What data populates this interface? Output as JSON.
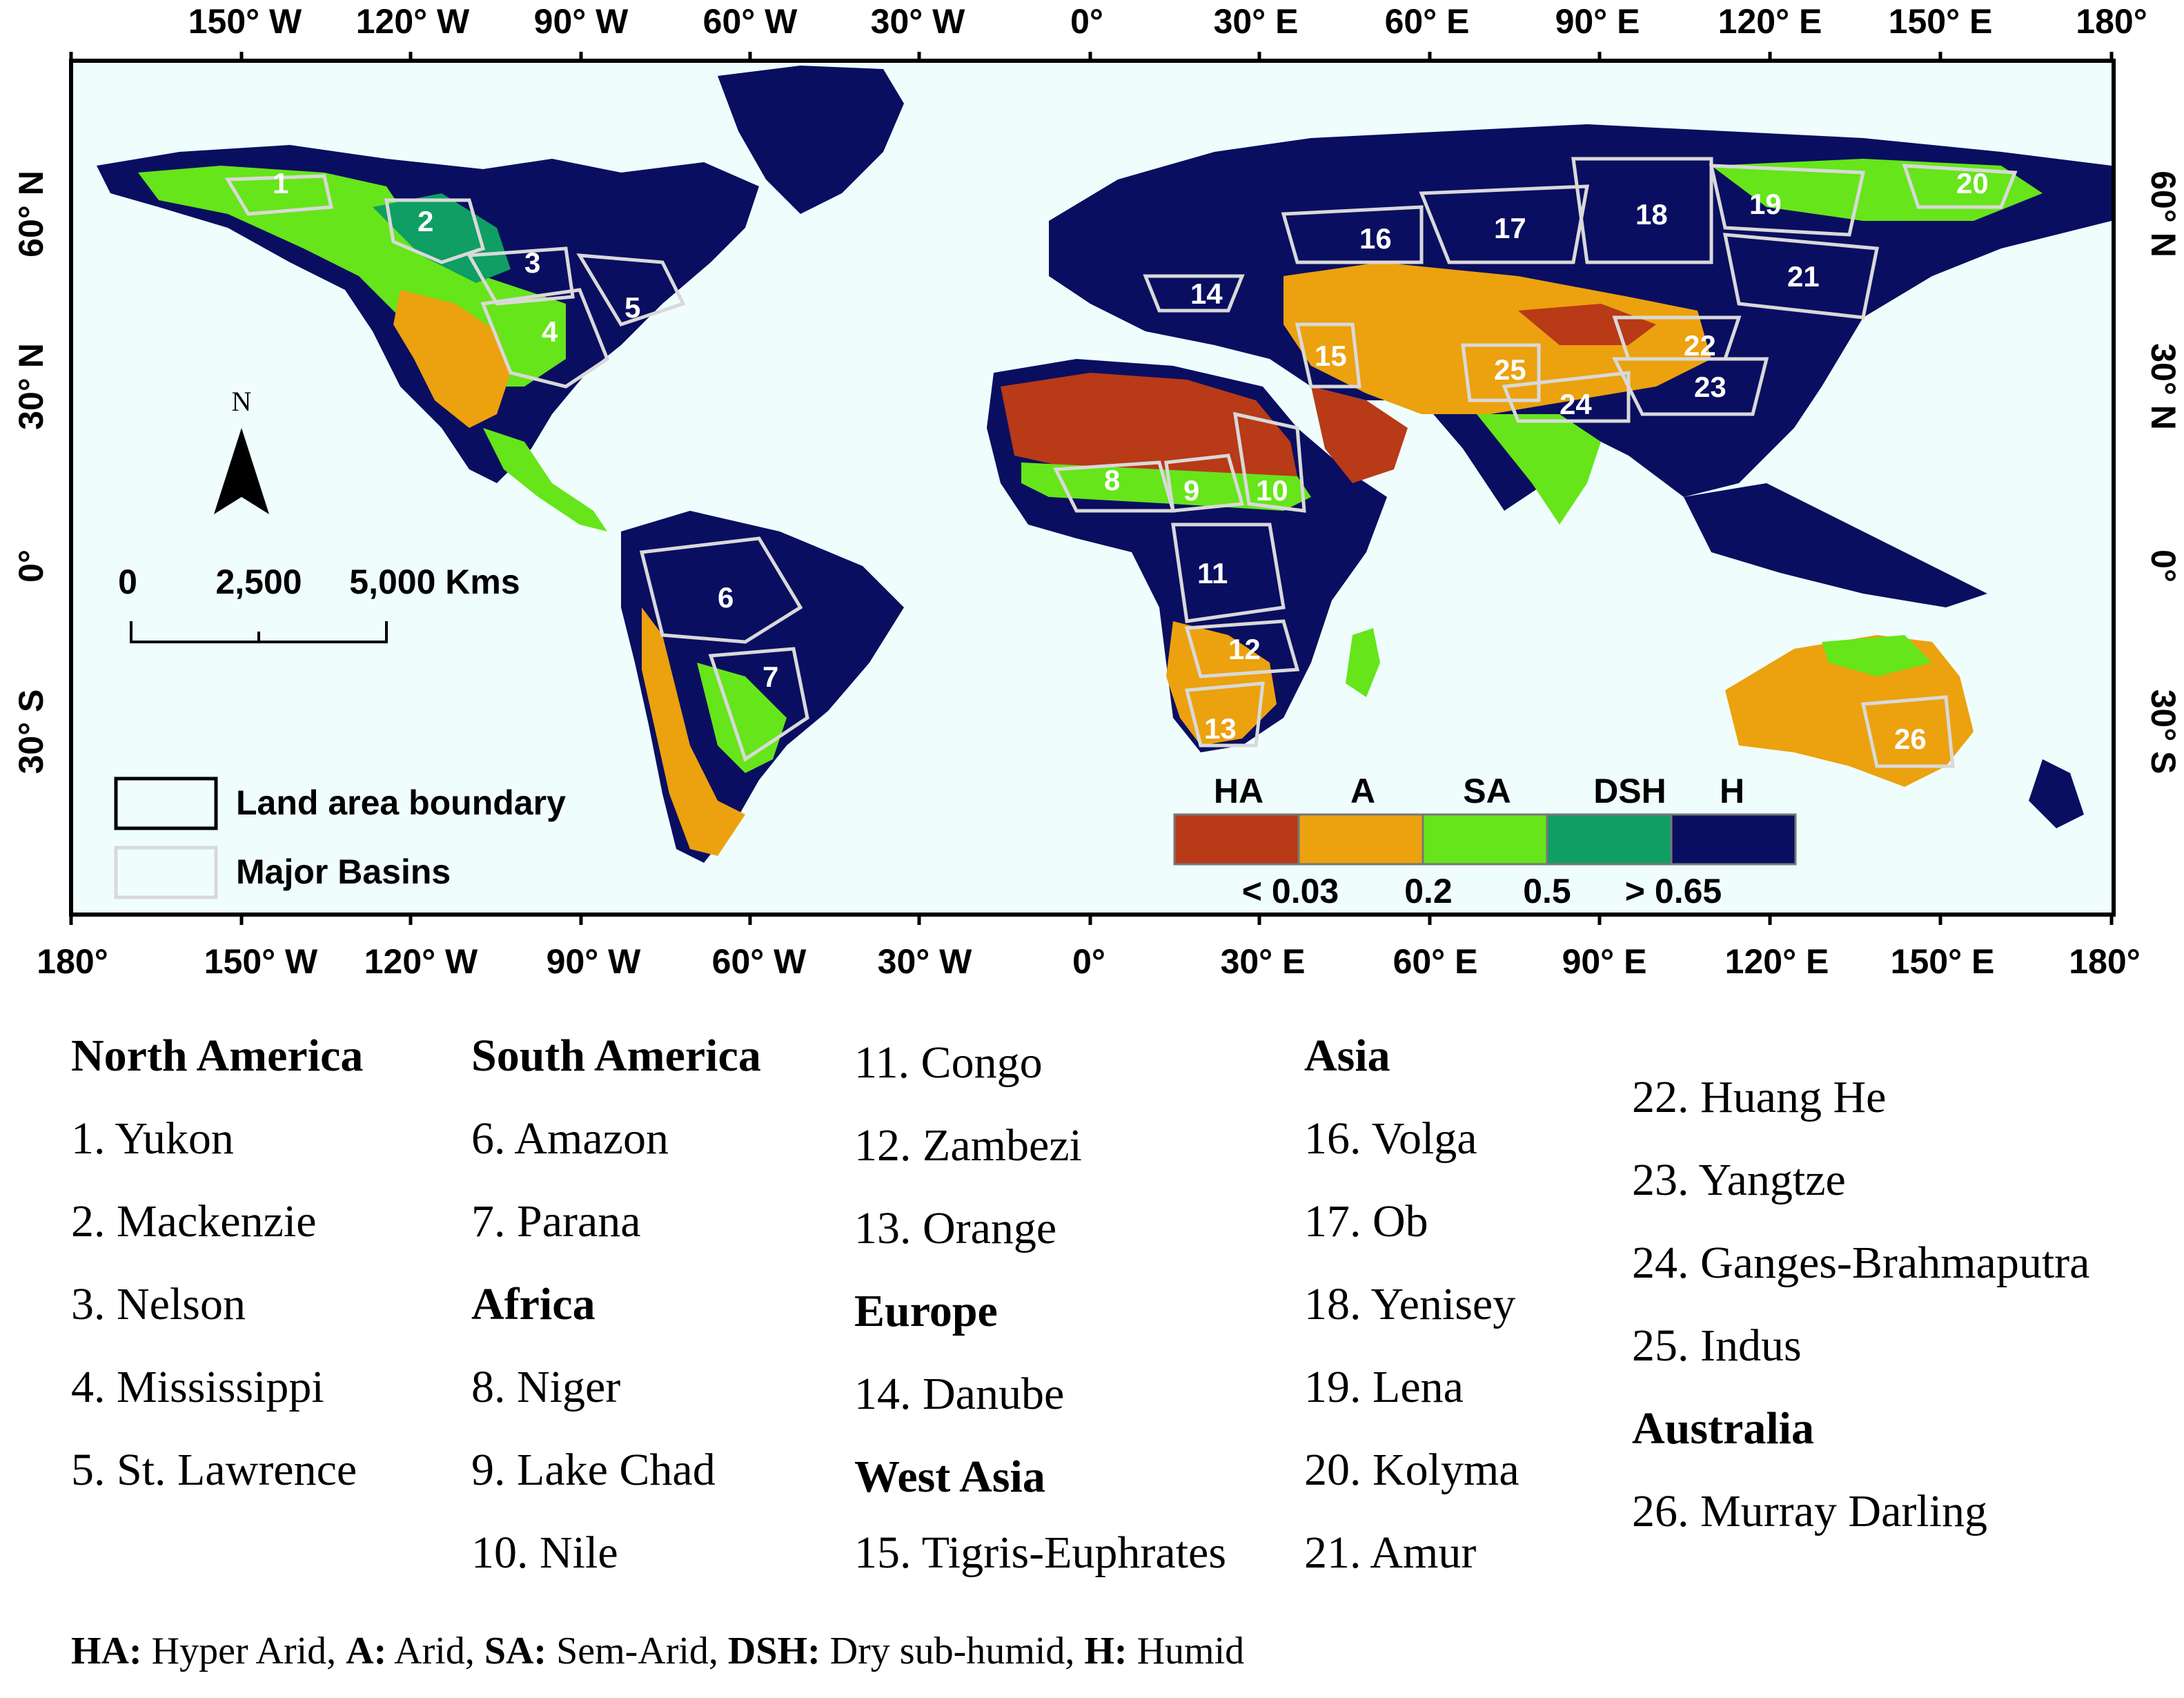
{
  "map": {
    "top_axis_labels": [
      "150° W",
      "120° W",
      "90° W",
      "60° W",
      "30° W",
      "0°",
      "30° E",
      "60° E",
      "90° E",
      "120° E",
      "150° E",
      "180°"
    ],
    "bottom_axis_labels": [
      "180°",
      "150° W",
      "120° W",
      "90° W",
      "60° W",
      "30° W",
      "0°",
      "30° E",
      "60° E",
      "90° E",
      "120° E",
      "150° E",
      "180°"
    ],
    "lat_labels": [
      "60° N",
      "30° N",
      "0°",
      "30° S"
    ],
    "north_arrow_label": "N",
    "scale_bar": {
      "labels": [
        "0",
        "2,500",
        "5,000 Kms"
      ]
    },
    "boundary_legend": {
      "land": "Land area boundary",
      "basins": "Major Basins"
    },
    "aridity_legend": {
      "classes": [
        {
          "label": "HA",
          "color": "#b83a17"
        },
        {
          "label": "A",
          "color": "#eca10e"
        },
        {
          "label": "SA",
          "color": "#66e51a"
        },
        {
          "label": "DSH",
          "color": "#0f9e63"
        },
        {
          "label": "H",
          "color": "#0a0e60"
        }
      ],
      "thresholds": [
        "< 0.03",
        "0.2",
        "0.5",
        "> 0.65"
      ]
    },
    "colors": {
      "ocean": "#effdfd",
      "humid": "#0a0e60",
      "basin_line": "#d9d9d9"
    },
    "basin_numbers": [
      "1",
      "2",
      "3",
      "4",
      "5",
      "6",
      "7",
      "8",
      "9",
      "10",
      "11",
      "12",
      "13",
      "14",
      "15",
      "16",
      "17",
      "18",
      "19",
      "20",
      "21",
      "22",
      "23",
      "24",
      "25",
      "26"
    ]
  },
  "basin_list": {
    "columns": [
      {
        "rows": [
          {
            "text": "North America",
            "header": true
          },
          {
            "text": "1. Yukon"
          },
          {
            "text": "2. Mackenzie"
          },
          {
            "text": "3. Nelson"
          },
          {
            "text": "4. Mississippi"
          },
          {
            "text": "5. St. Lawrence"
          }
        ]
      },
      {
        "rows": [
          {
            "text": "South America",
            "header": true
          },
          {
            "text": "6. Amazon"
          },
          {
            "text": "7. Parana"
          },
          {
            "text": "Africa",
            "header": true
          },
          {
            "text": "8. Niger"
          },
          {
            "text": "9. Lake Chad"
          },
          {
            "text": "10. Nile"
          }
        ]
      },
      {
        "rows": [
          {
            "text": "11. Congo"
          },
          {
            "text": "12. Zambezi"
          },
          {
            "text": "13. Orange"
          },
          {
            "text": "Europe",
            "header": true
          },
          {
            "text": "14. Danube"
          },
          {
            "text": "West Asia",
            "header": true
          },
          {
            "text": "15. Tigris-Euphrates"
          }
        ]
      },
      {
        "rows": [
          {
            "text": "Asia",
            "header": true
          },
          {
            "text": "16. Volga"
          },
          {
            "text": "17. Ob"
          },
          {
            "text": "18. Yenisey"
          },
          {
            "text": "19. Lena"
          },
          {
            "text": "20. Kolyma"
          },
          {
            "text": "21. Amur"
          }
        ]
      },
      {
        "rows": [
          {
            "text": "22. Huang He"
          },
          {
            "text": "23. Yangtze"
          },
          {
            "text": "24. Ganges-Brahmaputra"
          },
          {
            "text": "25. Indus"
          },
          {
            "text": "Australia",
            "header": true
          },
          {
            "text": "26. Murray Darling"
          }
        ]
      }
    ]
  },
  "footnote": [
    {
      "abbr": "HA:",
      "full": " Hyper Arid, "
    },
    {
      "abbr": "A:",
      "full": " Arid, "
    },
    {
      "abbr": "SA:",
      "full": " Sem-Arid, "
    },
    {
      "abbr": "DSH:",
      "full": " Dry sub-humid, "
    },
    {
      "abbr": "H:",
      "full": " Humid"
    }
  ]
}
